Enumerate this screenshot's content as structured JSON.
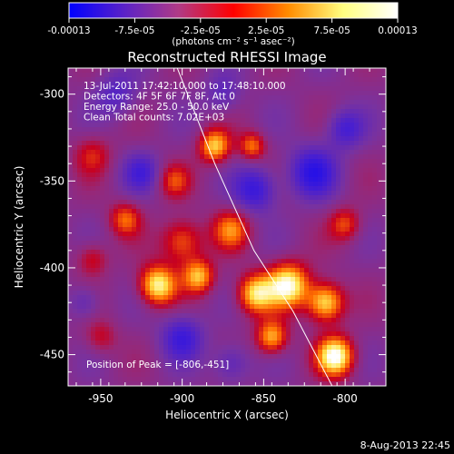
{
  "colorbar": {
    "tick_labels": [
      "-0.00013",
      "-7.5e-05",
      "-2.5e-05",
      "2.5e-05",
      "7.5e-05",
      "0.00013"
    ],
    "unit_label": "(photons cm⁻² s⁻¹ asec⁻²)",
    "colors": [
      "#0000ff",
      "#5a22c8",
      "#b03a86",
      "#ff0000",
      "#ff8c00",
      "#ffff80",
      "#ffffff"
    ]
  },
  "footer": {
    "date": "8-Aug-2013 22:45"
  },
  "chart_data": {
    "type": "heatmap",
    "title": "Reconstructed RHESSI Image",
    "xlabel": "Heliocentric X (arcsec)",
    "ylabel": "Heliocentric Y (arcsec)",
    "xlim": [
      -970,
      -775
    ],
    "ylim": [
      -468,
      -285
    ],
    "xticks": [
      -950,
      -900,
      -850,
      -800
    ],
    "yticks": [
      -300,
      -350,
      -400,
      -450
    ],
    "xtick_labels": [
      "-950",
      "-900",
      "-850",
      "-800"
    ],
    "ytick_labels": [
      "-300",
      "-350",
      "-400",
      "-450"
    ],
    "annotations": [
      "13-Jul-2011 17:42:10.000 to 17:48:10.000",
      "Detectors: 4F 5F 6F 7F 8F, Att 0",
      "Energy Range: 25.0 - 50.0 keV",
      "Clean     Total counts: 7.02E+03"
    ],
    "peak_text": "Position of Peak = [-806,-451]",
    "peak": [
      -806,
      -451
    ],
    "limb_curve": [
      [
        -903,
        -285
      ],
      [
        -880,
        -340
      ],
      [
        -856,
        -390
      ],
      [
        -832,
        -425
      ],
      [
        -808,
        -468
      ]
    ],
    "blobs": [
      {
        "x": -880,
        "y": -330,
        "amp": 0.75,
        "r": 6
      },
      {
        "x": -857,
        "y": -330,
        "amp": 0.55,
        "r": 5
      },
      {
        "x": -955,
        "y": -335,
        "amp": 0.35,
        "r": 7
      },
      {
        "x": -905,
        "y": -350,
        "amp": 0.4,
        "r": 6
      },
      {
        "x": -935,
        "y": -372,
        "amp": 0.5,
        "r": 6
      },
      {
        "x": -900,
        "y": -385,
        "amp": 0.55,
        "r": 8
      },
      {
        "x": -870,
        "y": -378,
        "amp": 0.55,
        "r": 7
      },
      {
        "x": -800,
        "y": -375,
        "amp": 0.45,
        "r": 6
      },
      {
        "x": -915,
        "y": -410,
        "amp": 0.9,
        "r": 7
      },
      {
        "x": -890,
        "y": -405,
        "amp": 0.7,
        "r": 6
      },
      {
        "x": -855,
        "y": -415,
        "amp": 0.8,
        "r": 7
      },
      {
        "x": -835,
        "y": -410,
        "amp": 0.95,
        "r": 8
      },
      {
        "x": -812,
        "y": -420,
        "amp": 0.85,
        "r": 7
      },
      {
        "x": -845,
        "y": -440,
        "amp": 0.7,
        "r": 6
      },
      {
        "x": -806,
        "y": -451,
        "amp": 1.0,
        "r": 7
      },
      {
        "x": -955,
        "y": -395,
        "amp": 0.35,
        "r": 6
      },
      {
        "x": -950,
        "y": -440,
        "amp": 0.3,
        "r": 6
      },
      {
        "x": -940,
        "y": -300,
        "amp": -0.35,
        "r": 8
      },
      {
        "x": -925,
        "y": -345,
        "amp": -0.4,
        "r": 7
      },
      {
        "x": -855,
        "y": -355,
        "amp": -0.55,
        "r": 8
      },
      {
        "x": -820,
        "y": -345,
        "amp": -0.6,
        "r": 9
      },
      {
        "x": -800,
        "y": -320,
        "amp": -0.45,
        "r": 7
      },
      {
        "x": -900,
        "y": -440,
        "amp": -0.5,
        "r": 8
      },
      {
        "x": -870,
        "y": -455,
        "amp": -0.35,
        "r": 7
      },
      {
        "x": -960,
        "y": -420,
        "amp": -0.3,
        "r": 6
      },
      {
        "x": -875,
        "y": -300,
        "amp": -0.3,
        "r": 7
      }
    ]
  }
}
